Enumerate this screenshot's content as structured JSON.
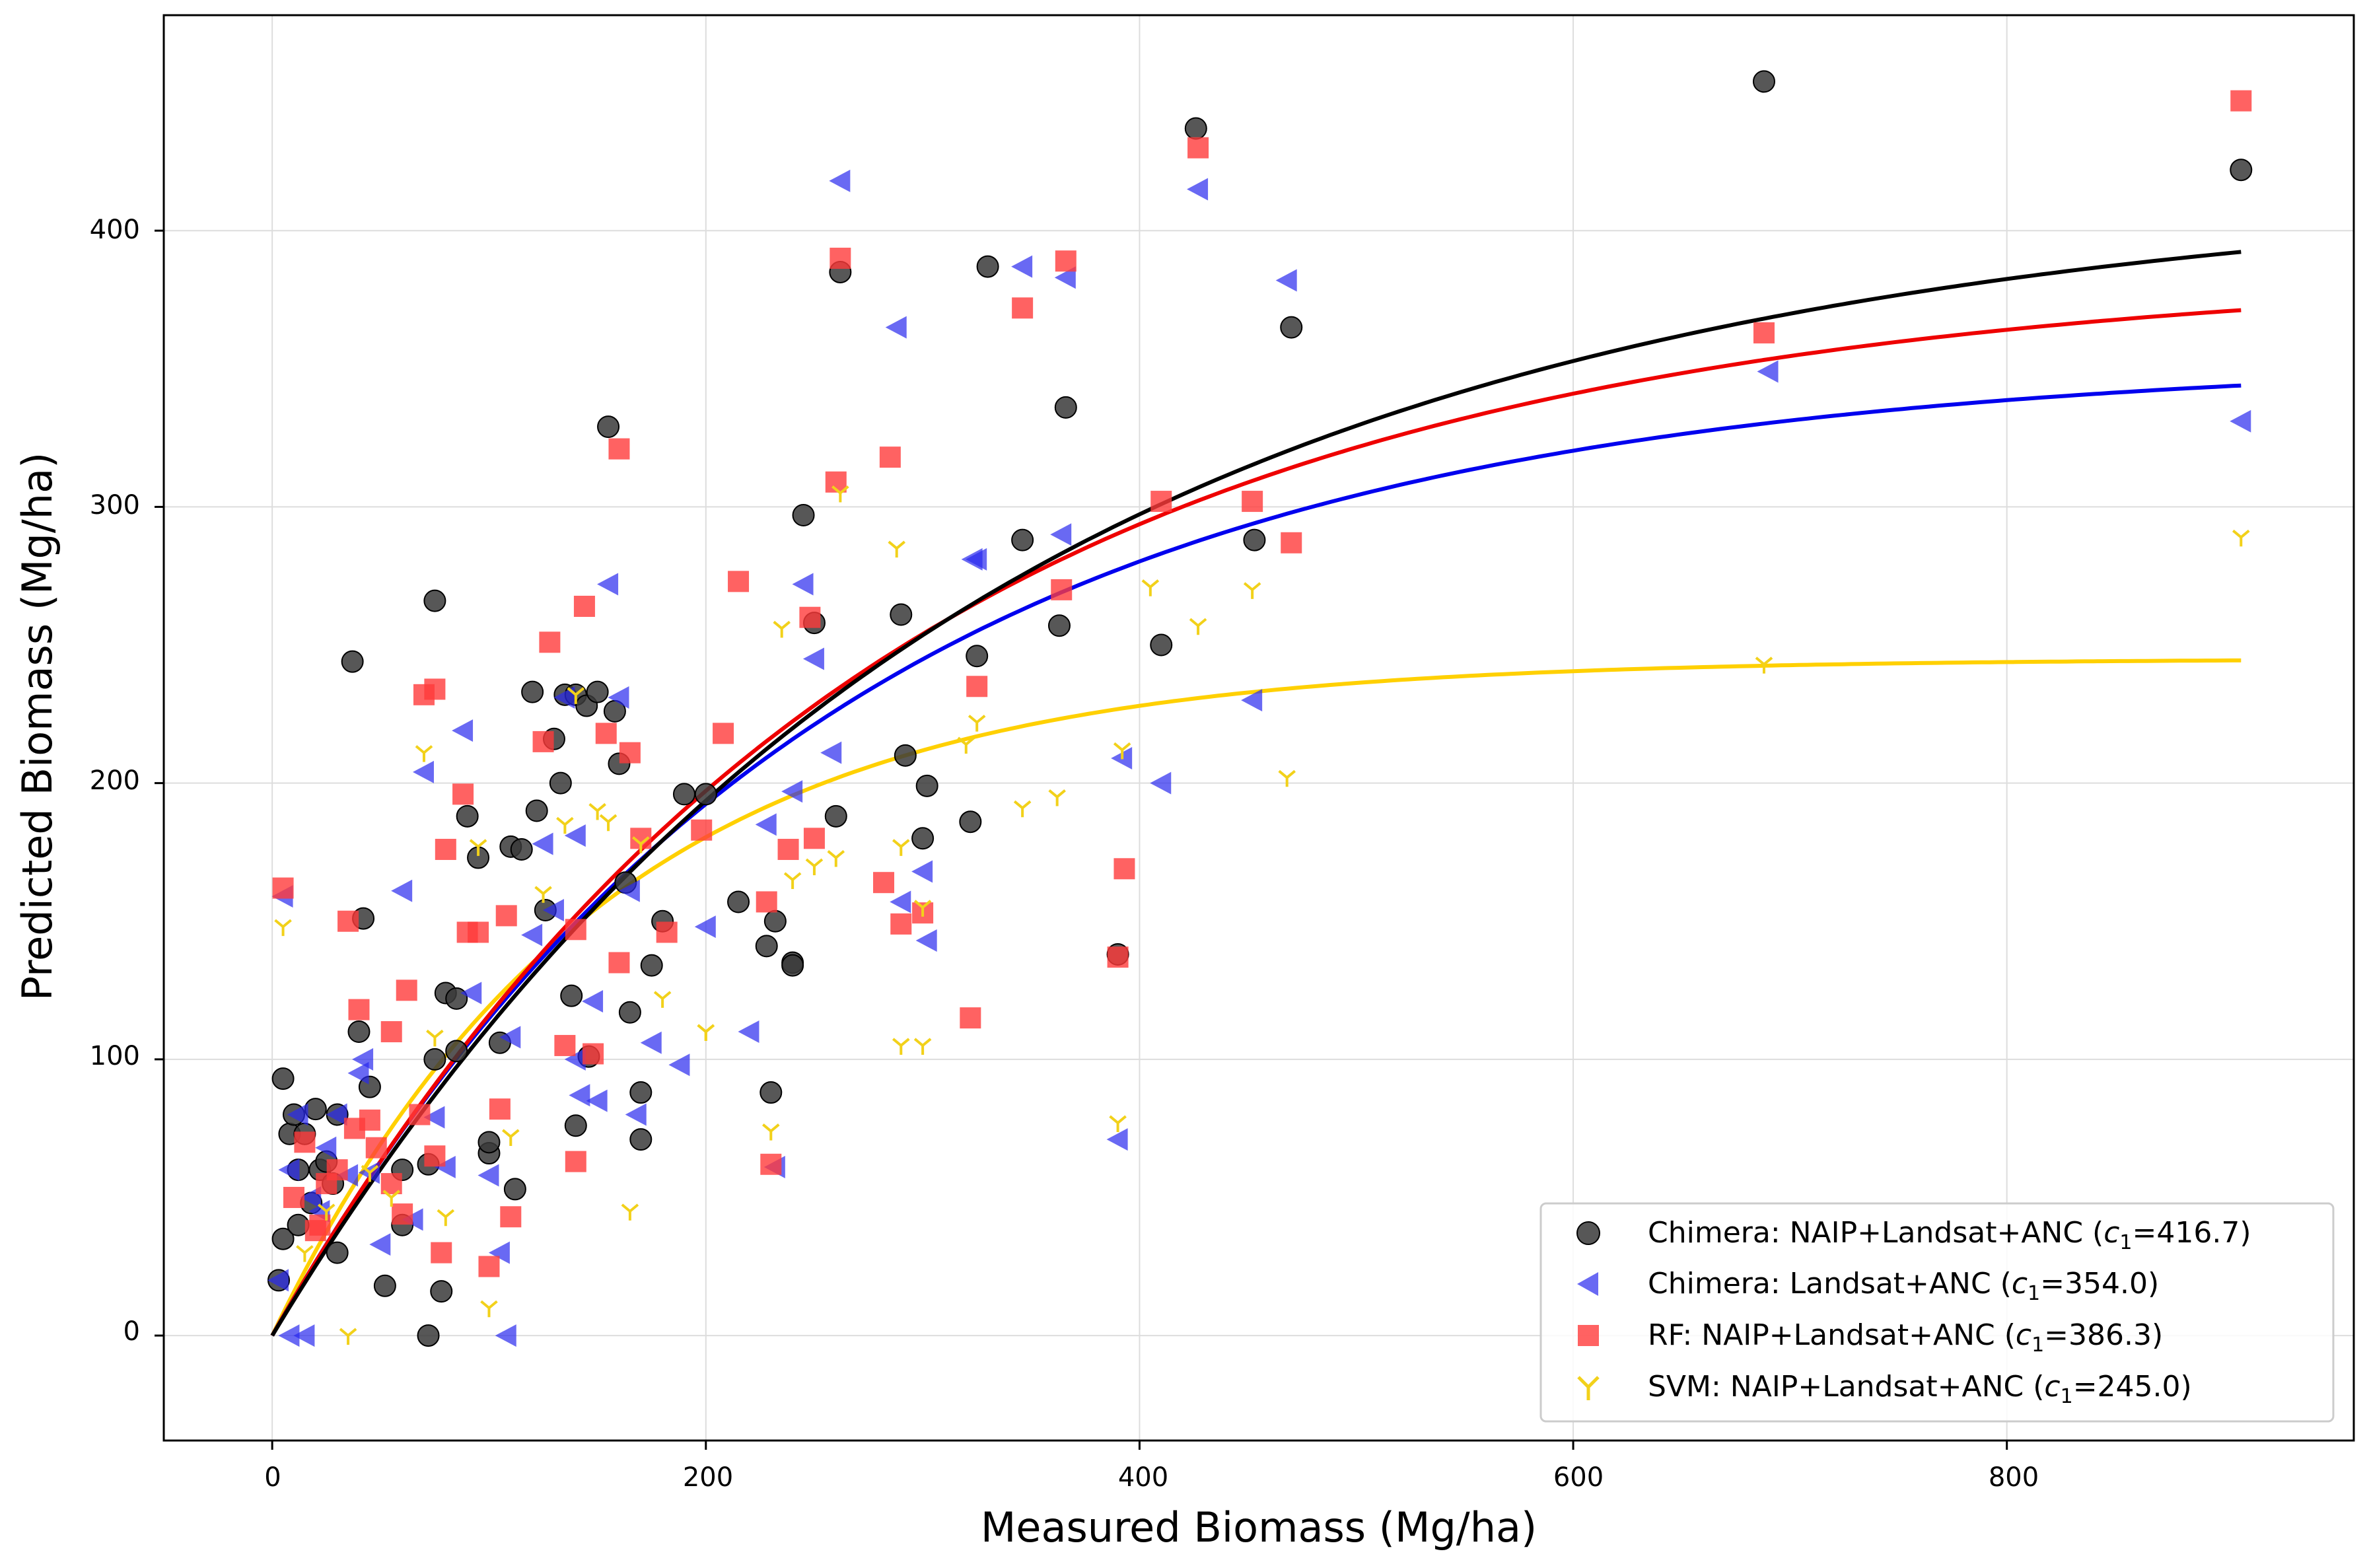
{
  "chart_data": {
    "type": "scatter",
    "title": "",
    "xlabel": "Measured Biomass (Mg/ha)",
    "ylabel": "Predicted Biomass (Mg/ha)",
    "xlim": [
      -50,
      960
    ],
    "ylim": [
      -38,
      478
    ],
    "xticks": [
      0,
      200,
      400,
      600,
      800
    ],
    "yticks": [
      0,
      100,
      200,
      300,
      400
    ],
    "grid": true,
    "legend_position": "bottom-right",
    "colors": {
      "chimera_full": "#3a3a3a",
      "chimera_landsat": "#2a2aee",
      "rf": "#ff3b3b",
      "svm": "#f2d11a",
      "curve_chimera_full": "#000000",
      "curve_chimera_landsat": "#0000ee",
      "curve_rf": "#ee0000",
      "curve_svm": "#ffd000"
    },
    "series": [
      {
        "name": "Chimera: NAIP+Landsat+ANC",
        "legend_prefix": "Chimera: NAIP+Landsat+ANC (",
        "legend_c": "c",
        "legend_sub": "1",
        "legend_suffix": "=416.7)",
        "c1": 416.7,
        "marker": "circle",
        "color_key": "chimera_full",
        "x": [
          37,
          42,
          40,
          30,
          45,
          60,
          72,
          75,
          80,
          85,
          90,
          95,
          100,
          105,
          110,
          115,
          120,
          122,
          126,
          130,
          133,
          135,
          138,
          140,
          145,
          150,
          155,
          158,
          160,
          163,
          165,
          170,
          175,
          180,
          190,
          200,
          215,
          228,
          230,
          232,
          240,
          245,
          250,
          260,
          262,
          290,
          292,
          300,
          302,
          322,
          325,
          330,
          346,
          363,
          366,
          390,
          410,
          426,
          453,
          470,
          688,
          908,
          5,
          8,
          10,
          12,
          15,
          20,
          22,
          25,
          28,
          30,
          5,
          3,
          12,
          18,
          72,
          78,
          52,
          60,
          100,
          112,
          140,
          146,
          170,
          75,
          85,
          240
        ],
        "y": [
          244,
          151,
          110,
          80,
          90,
          60,
          62,
          266,
          124,
          122,
          188,
          173,
          66,
          106,
          177,
          176,
          233,
          190,
          154,
          216,
          200,
          232,
          123,
          232,
          228,
          233,
          329,
          226,
          207,
          164,
          117,
          71,
          134,
          150,
          196,
          196,
          157,
          141,
          88,
          150,
          135,
          297,
          258,
          188,
          385,
          261,
          210,
          180,
          199,
          186,
          246,
          387,
          288,
          257,
          336,
          138,
          250,
          437,
          288,
          365,
          454,
          422,
          93,
          73,
          80,
          60,
          73,
          82,
          60,
          63,
          55,
          30,
          35,
          20,
          40,
          48,
          0,
          16,
          18,
          40,
          70,
          53,
          76,
          101,
          88,
          100,
          103,
          134
        ]
      },
      {
        "name": "Chimera: Landsat+ANC",
        "legend_prefix": "Chimera: Landsat+ANC (",
        "legend_c": "c",
        "legend_sub": "1",
        "legend_suffix": "=354.0)",
        "c1": 354.0,
        "marker": "triangle-left",
        "color_key": "chimera_landsat",
        "x": [
          5,
          8,
          12,
          18,
          25,
          35,
          42,
          50,
          60,
          65,
          70,
          75,
          80,
          88,
          92,
          100,
          105,
          110,
          120,
          125,
          130,
          135,
          140,
          142,
          148,
          155,
          160,
          165,
          168,
          175,
          188,
          200,
          220,
          228,
          232,
          240,
          245,
          250,
          258,
          262,
          288,
          290,
          300,
          302,
          323,
          325,
          346,
          364,
          366,
          390,
          392,
          410,
          427,
          452,
          468,
          690,
          908,
          40,
          45,
          30,
          22,
          15,
          8,
          3,
          108,
          140,
          150
        ],
        "y": [
          159,
          60,
          80,
          50,
          68,
          58,
          100,
          33,
          161,
          42,
          204,
          79,
          61,
          219,
          124,
          58,
          30,
          108,
          145,
          178,
          154,
          231,
          181,
          87,
          121,
          272,
          231,
          161,
          80,
          106,
          98,
          148,
          110,
          185,
          61,
          197,
          272,
          245,
          211,
          418,
          365,
          157,
          168,
          143,
          281,
          281,
          387,
          290,
          383,
          71,
          209,
          200,
          415,
          230,
          382,
          349,
          331,
          95,
          59,
          80,
          45,
          0,
          0,
          20,
          0,
          100,
          85
        ]
      },
      {
        "name": "RF: NAIP+Landsat+ANC",
        "legend_prefix": "RF: NAIP+Landsat+ANC (",
        "legend_c": "c",
        "legend_sub": "1",
        "legend_suffix": "=386.3)",
        "c1": 386.3,
        "marker": "square",
        "color_key": "rf",
        "x": [
          5,
          10,
          15,
          20,
          25,
          35,
          40,
          48,
          55,
          62,
          70,
          75,
          78,
          80,
          88,
          90,
          95,
          100,
          108,
          110,
          125,
          128,
          135,
          140,
          144,
          148,
          154,
          160,
          165,
          170,
          182,
          198,
          208,
          215,
          228,
          230,
          238,
          248,
          250,
          260,
          262,
          282,
          285,
          290,
          300,
          322,
          325,
          346,
          364,
          366,
          390,
          393,
          410,
          427,
          452,
          470,
          688,
          908,
          38,
          45,
          55,
          60,
          30,
          22,
          68,
          75,
          105,
          140,
          160
        ],
        "y": [
          162,
          50,
          70,
          38,
          55,
          150,
          118,
          68,
          110,
          125,
          232,
          234,
          30,
          176,
          196,
          146,
          146,
          25,
          152,
          43,
          215,
          251,
          105,
          147,
          264,
          102,
          218,
          321,
          211,
          180,
          146,
          183,
          218,
          273,
          157,
          62,
          176,
          260,
          180,
          309,
          390,
          164,
          318,
          149,
          153,
          115,
          235,
          372,
          270,
          389,
          137,
          169,
          302,
          430,
          302,
          287,
          363,
          447,
          75,
          78,
          55,
          44,
          60,
          40,
          80,
          65,
          82,
          63,
          135
        ]
      },
      {
        "name": "SVM: NAIP+Landsat+ANC",
        "legend_prefix": "SVM: NAIP+Landsat+ANC (",
        "legend_c": "c",
        "legend_sub": "1",
        "legend_suffix": "=245.0)",
        "c1": 245.0,
        "marker": "tri-down",
        "color_key": "svm",
        "x": [
          5,
          15,
          25,
          45,
          70,
          80,
          95,
          110,
          125,
          135,
          150,
          165,
          180,
          200,
          230,
          240,
          250,
          262,
          288,
          290,
          300,
          325,
          346,
          362,
          390,
          392,
          405,
          427,
          452,
          468,
          688,
          908,
          35,
          55,
          75,
          100,
          140,
          155,
          170,
          200,
          235,
          260,
          290,
          300,
          320
        ],
        "y": [
          148,
          30,
          45,
          59,
          211,
          43,
          177,
          72,
          160,
          185,
          190,
          45,
          122,
          110,
          74,
          165,
          170,
          305,
          285,
          105,
          105,
          222,
          191,
          195,
          77,
          212,
          271,
          257,
          270,
          202,
          243,
          289,
          0,
          50,
          108,
          10,
          232,
          186,
          178,
          110,
          256,
          173,
          177,
          155,
          214
        ]
      }
    ]
  },
  "axis_text": {
    "xlabel": "Measured Biomass (Mg/ha)",
    "ylabel": "Predicted Biomass (Mg/ha)",
    "x0": "0",
    "x1": "200",
    "x2": "400",
    "x3": "600",
    "x4": "800",
    "y0": "0",
    "y1": "100",
    "y2": "200",
    "y3": "300",
    "y4": "400"
  },
  "legend": [
    {
      "prefix": "Chimera: NAIP+Landsat+ANC (",
      "c": "c",
      "sub": "1",
      "suffix": "=416.7)"
    },
    {
      "prefix": "Chimera: Landsat+ANC (",
      "c": "c",
      "sub": "1",
      "suffix": "=354.0)"
    },
    {
      "prefix": "RF: NAIP+Landsat+ANC (",
      "c": "c",
      "sub": "1",
      "suffix": "=386.3)"
    },
    {
      "prefix": "SVM: NAIP+Landsat+ANC (",
      "c": "c",
      "sub": "1",
      "suffix": "=245.0)"
    }
  ]
}
